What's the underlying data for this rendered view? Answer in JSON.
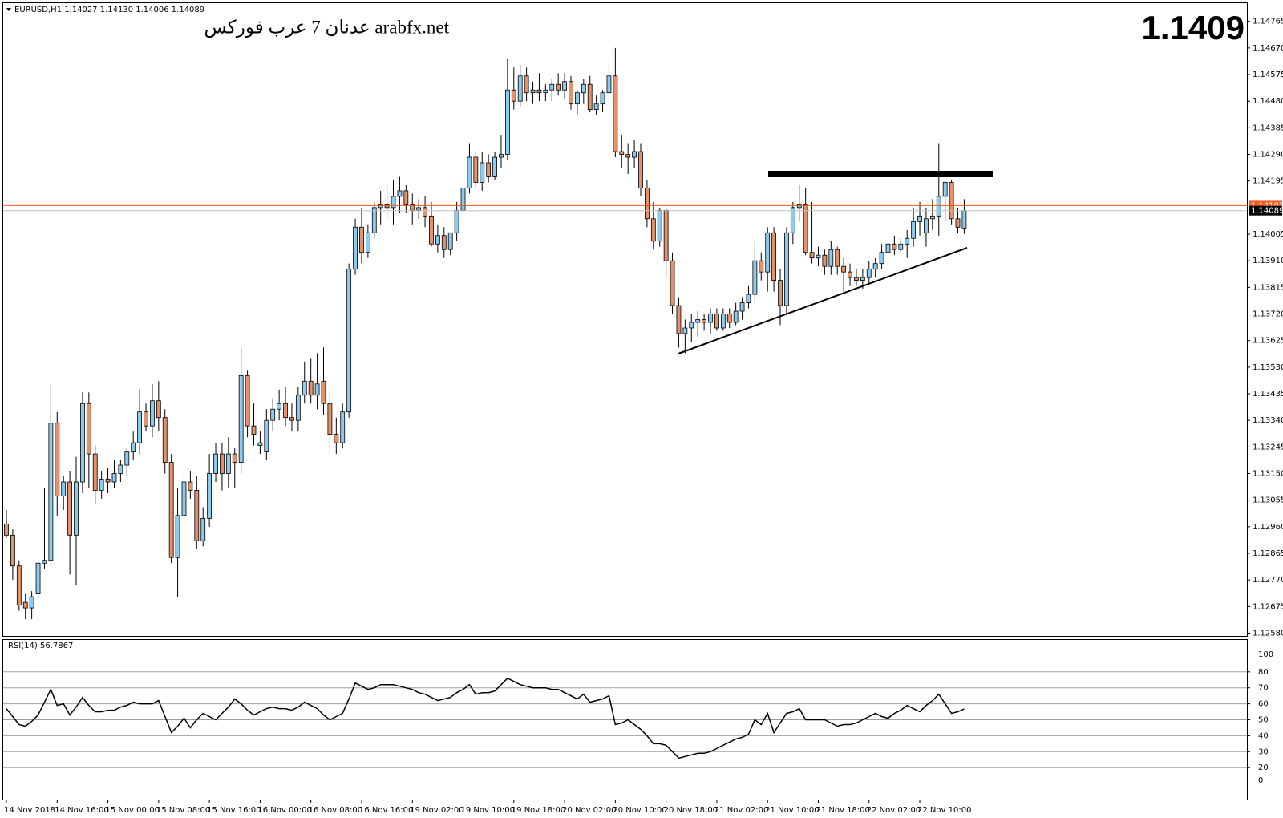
{
  "chart_data": [
    {
      "type": "candlestick",
      "header": "EURUSD,H1  1.14027 1.14130 1.14006 1.14089",
      "watermark": "عدنان 7 عرب فوركس arabfx.net",
      "price_display": "1.1409",
      "up_color": "#8ccbf0",
      "down_color": "#e3926c",
      "wick_color": "#000000",
      "ask": 1.14107,
      "ask_color": "#ff5a1f",
      "bid": 1.14089,
      "bid_color": "#000000",
      "ylim": [
        1.1257,
        1.1483
      ],
      "yticks": [
        1.14765,
        {
          "value": 1.1467,
          "label": "1.14670"
        },
        1.14575,
        {
          "value": 1.1448,
          "label": "1.14480"
        },
        1.14385,
        {
          "value": 1.1429,
          "label": "1.14290"
        },
        1.14195,
        1.14005,
        {
          "value": 1.1391,
          "label": "1.13910"
        },
        1.13815,
        {
          "value": 1.1372,
          "label": "1.13720"
        },
        1.13625,
        {
          "value": 1.1353,
          "label": "1.13530"
        },
        1.13435,
        {
          "value": 1.1334,
          "label": "1.13340"
        },
        1.13245,
        {
          "value": 1.1315,
          "label": "1.13150"
        },
        1.13055,
        {
          "value": 1.1296,
          "label": "1.12960"
        },
        1.12865,
        {
          "value": 1.1277,
          "label": "1.12770"
        },
        1.12675,
        {
          "value": 1.1258,
          "label": "1.12580"
        }
      ],
      "categories": [
        "14 Nov 2018",
        null,
        null,
        null,
        null,
        null,
        null,
        null,
        "14 Nov 16:00",
        null,
        null,
        null,
        null,
        null,
        null,
        null,
        "15 Nov 00:00",
        null,
        null,
        null,
        null,
        null,
        null,
        null,
        "15 Nov 08:00",
        null,
        null,
        null,
        null,
        null,
        null,
        null,
        "15 Nov 16:00",
        null,
        null,
        null,
        null,
        null,
        null,
        null,
        "16 Nov 00:00",
        null,
        null,
        null,
        null,
        null,
        null,
        null,
        "16 Nov 08:00",
        null,
        null,
        null,
        null,
        null,
        null,
        null,
        "16 Nov 16:00",
        null,
        null,
        null,
        null,
        null,
        null,
        null,
        "19 Nov 02:00",
        null,
        null,
        null,
        null,
        null,
        null,
        null,
        "19 Nov 10:00",
        null,
        null,
        null,
        null,
        null,
        null,
        null,
        "19 Nov 18:00",
        null,
        null,
        null,
        null,
        null,
        null,
        null,
        "20 Nov 02:00",
        null,
        null,
        null,
        null,
        null,
        null,
        null,
        "20 Nov 10:00",
        null,
        null,
        null,
        null,
        null,
        null,
        null,
        "20 Nov 18:00",
        null,
        null,
        null,
        null,
        null,
        null,
        null,
        "21 Nov 02:00",
        null,
        null,
        null,
        null,
        null,
        null,
        null,
        "21 Nov 10:00",
        null,
        null,
        null,
        null,
        null,
        null,
        null,
        "21 Nov 18:00",
        null,
        null,
        null,
        null,
        null,
        null,
        null,
        "22 Nov 02:00",
        null,
        null,
        null,
        null,
        null,
        null,
        null,
        "22 Nov 10:00",
        null,
        null,
        null,
        null,
        null,
        null,
        null
      ],
      "ohlc": [
        [
          1.1297,
          1.1302,
          1.1292,
          1.1293
        ],
        [
          1.1293,
          1.1295,
          1.1277,
          1.1282
        ],
        [
          1.1282,
          1.1284,
          1.1266,
          1.1268
        ],
        [
          1.1269,
          1.1272,
          1.1263,
          1.1267
        ],
        [
          1.1267,
          1.1273,
          1.1263,
          1.1271
        ],
        [
          1.1272,
          1.1284,
          1.127,
          1.1283
        ],
        [
          1.1283,
          1.131,
          1.1281,
          1.1284
        ],
        [
          1.1284,
          1.1347,
          1.1282,
          1.1333
        ],
        [
          1.1333,
          1.1337,
          1.13,
          1.1307
        ],
        [
          1.1307,
          1.1314,
          1.1302,
          1.1312
        ],
        [
          1.1312,
          1.1316,
          1.1279,
          1.1293
        ],
        [
          1.1293,
          1.1321,
          1.1275,
          1.1312
        ],
        [
          1.1312,
          1.1344,
          1.1308,
          1.134
        ],
        [
          1.134,
          1.1344,
          1.131,
          1.1322
        ],
        [
          1.1322,
          1.1325,
          1.1304,
          1.1309
        ],
        [
          1.1309,
          1.1316,
          1.1306,
          1.1313
        ],
        [
          1.1313,
          1.1317,
          1.1308,
          1.1312
        ],
        [
          1.1312,
          1.132,
          1.131,
          1.1315
        ],
        [
          1.1315,
          1.132,
          1.1312,
          1.1318
        ],
        [
          1.1318,
          1.1324,
          1.1314,
          1.1323
        ],
        [
          1.1323,
          1.133,
          1.132,
          1.1326
        ],
        [
          1.1326,
          1.1345,
          1.1322,
          1.1337
        ],
        [
          1.1337,
          1.134,
          1.133,
          1.1332
        ],
        [
          1.1332,
          1.1347,
          1.1328,
          1.1341
        ],
        [
          1.1341,
          1.1348,
          1.133,
          1.1335
        ],
        [
          1.1335,
          1.1338,
          1.1315,
          1.1319
        ],
        [
          1.1319,
          1.1322,
          1.1283,
          1.1285
        ],
        [
          1.1285,
          1.131,
          1.1271,
          1.13
        ],
        [
          1.13,
          1.1318,
          1.1297,
          1.1312
        ],
        [
          1.1312,
          1.1316,
          1.1306,
          1.1309
        ],
        [
          1.1309,
          1.1314,
          1.1288,
          1.1291
        ],
        [
          1.1291,
          1.1303,
          1.1289,
          1.1299
        ],
        [
          1.1299,
          1.1322,
          1.1296,
          1.1315
        ],
        [
          1.1315,
          1.1326,
          1.1312,
          1.1322
        ],
        [
          1.1322,
          1.1326,
          1.1309,
          1.1315
        ],
        [
          1.1315,
          1.1328,
          1.131,
          1.1322
        ],
        [
          1.1322,
          1.1324,
          1.131,
          1.1319
        ],
        [
          1.1319,
          1.136,
          1.1315,
          1.135
        ],
        [
          1.135,
          1.1352,
          1.1328,
          1.1332
        ],
        [
          1.1332,
          1.134,
          1.1325,
          1.1329
        ],
        [
          1.1325,
          1.133,
          1.1322,
          1.1326
        ],
        [
          1.1323,
          1.1338,
          1.132,
          1.1334
        ],
        [
          1.1334,
          1.1342,
          1.133,
          1.1338
        ],
        [
          1.1338,
          1.1345,
          1.1334,
          1.134
        ],
        [
          1.134,
          1.1346,
          1.1332,
          1.1335
        ],
        [
          1.1335,
          1.134,
          1.133,
          1.1334
        ],
        [
          1.1334,
          1.1346,
          1.133,
          1.1343
        ],
        [
          1.1343,
          1.1355,
          1.134,
          1.1348
        ],
        [
          1.1348,
          1.1356,
          1.134,
          1.1343
        ],
        [
          1.1343,
          1.1358,
          1.1338,
          1.1347
        ],
        [
          1.1348,
          1.136,
          1.1336,
          1.134
        ],
        [
          1.134,
          1.1344,
          1.1322,
          1.1329
        ],
        [
          1.1329,
          1.1335,
          1.1322,
          1.1326
        ],
        [
          1.1326,
          1.134,
          1.1324,
          1.1337
        ],
        [
          1.1337,
          1.139,
          1.1335,
          1.1388
        ],
        [
          1.1388,
          1.1406,
          1.1386,
          1.1403
        ],
        [
          1.1403,
          1.141,
          1.139,
          1.1394
        ],
        [
          1.1394,
          1.1404,
          1.1392,
          1.1401
        ],
        [
          1.1401,
          1.1412,
          1.1399,
          1.141
        ],
        [
          1.141,
          1.1416,
          1.1404,
          1.1411
        ],
        [
          1.1411,
          1.1418,
          1.1406,
          1.141
        ],
        [
          1.141,
          1.142,
          1.1404,
          1.1414
        ],
        [
          1.1414,
          1.1421,
          1.1408,
          1.1416
        ],
        [
          1.1416,
          1.1418,
          1.1408,
          1.1411
        ],
        [
          1.1411,
          1.1415,
          1.1404,
          1.1409
        ],
        [
          1.1409,
          1.1413,
          1.1406,
          1.141
        ],
        [
          1.141,
          1.1414,
          1.1403,
          1.1407
        ],
        [
          1.1407,
          1.1412,
          1.1396,
          1.1397
        ],
        [
          1.1397,
          1.1404,
          1.1394,
          1.14
        ],
        [
          1.14,
          1.1403,
          1.1392,
          1.1395
        ],
        [
          1.1395,
          1.1401,
          1.1393,
          1.1401
        ],
        [
          1.1401,
          1.1412,
          1.1398,
          1.1409
        ],
        [
          1.1409,
          1.142,
          1.1406,
          1.1417
        ],
        [
          1.1417,
          1.1433,
          1.1415,
          1.1428
        ],
        [
          1.1428,
          1.143,
          1.1417,
          1.1419
        ],
        [
          1.1419,
          1.143,
          1.1416,
          1.1426
        ],
        [
          1.1426,
          1.1429,
          1.1419,
          1.1421
        ],
        [
          1.1421,
          1.143,
          1.142,
          1.1428
        ],
        [
          1.1428,
          1.1436,
          1.1424,
          1.1429
        ],
        [
          1.1429,
          1.1463,
          1.1427,
          1.1452
        ],
        [
          1.1452,
          1.146,
          1.1445,
          1.1448
        ],
        [
          1.1448,
          1.1461,
          1.1446,
          1.1457
        ],
        [
          1.1457,
          1.146,
          1.1448,
          1.1451
        ],
        [
          1.1451,
          1.1455,
          1.1447,
          1.1452
        ],
        [
          1.1452,
          1.1458,
          1.1448,
          1.1451
        ],
        [
          1.1451,
          1.1454,
          1.1448,
          1.1452
        ],
        [
          1.1452,
          1.1456,
          1.1448,
          1.1454
        ],
        [
          1.1454,
          1.1458,
          1.145,
          1.1452
        ],
        [
          1.1452,
          1.1458,
          1.1449,
          1.1455
        ],
        [
          1.1455,
          1.1457,
          1.1445,
          1.1447
        ],
        [
          1.1447,
          1.1452,
          1.1443,
          1.1451
        ],
        [
          1.1451,
          1.1456,
          1.1447,
          1.1454
        ],
        [
          1.1454,
          1.1457,
          1.1444,
          1.1445
        ],
        [
          1.1445,
          1.145,
          1.1443,
          1.1447
        ],
        [
          1.1447,
          1.1452,
          1.1444,
          1.1451
        ],
        [
          1.1451,
          1.1462,
          1.1448,
          1.1457
        ],
        [
          1.1457,
          1.1467,
          1.1428,
          1.143
        ],
        [
          1.143,
          1.1436,
          1.1424,
          1.1429
        ],
        [
          1.1429,
          1.1433,
          1.1422,
          1.1428
        ],
        [
          1.1428,
          1.1434,
          1.1424,
          1.143
        ],
        [
          1.143,
          1.1433,
          1.1414,
          1.1417
        ],
        [
          1.1417,
          1.142,
          1.1403,
          1.1406
        ],
        [
          1.1406,
          1.1412,
          1.1395,
          1.1398
        ],
        [
          1.1398,
          1.141,
          1.1396,
          1.1409
        ],
        [
          1.1409,
          1.141,
          1.1385,
          1.1391
        ],
        [
          1.1391,
          1.1394,
          1.1372,
          1.1375
        ],
        [
          1.1375,
          1.1378,
          1.136,
          1.1365
        ],
        [
          1.1365,
          1.137,
          1.1358,
          1.1367
        ],
        [
          1.1367,
          1.1372,
          1.1362,
          1.1369
        ],
        [
          1.1369,
          1.1373,
          1.1364,
          1.137
        ],
        [
          1.137,
          1.1372,
          1.1366,
          1.1369
        ],
        [
          1.1369,
          1.1374,
          1.1365,
          1.1372
        ],
        [
          1.1372,
          1.1374,
          1.1366,
          1.1367
        ],
        [
          1.1367,
          1.1374,
          1.1366,
          1.1372
        ],
        [
          1.1372,
          1.1374,
          1.1367,
          1.1369
        ],
        [
          1.1369,
          1.1376,
          1.1368,
          1.1373
        ],
        [
          1.1373,
          1.1378,
          1.137,
          1.1376
        ],
        [
          1.1376,
          1.1382,
          1.1374,
          1.1379
        ],
        [
          1.1379,
          1.1398,
          1.1376,
          1.1391
        ],
        [
          1.1391,
          1.1394,
          1.1384,
          1.1387
        ],
        [
          1.1387,
          1.1403,
          1.138,
          1.1401
        ],
        [
          1.1401,
          1.1403,
          1.138,
          1.1384
        ],
        [
          1.1384,
          1.1388,
          1.1368,
          1.1375
        ],
        [
          1.1375,
          1.1403,
          1.1372,
          1.1401
        ],
        [
          1.1401,
          1.1412,
          1.1397,
          1.141
        ],
        [
          1.141,
          1.1418,
          1.1405,
          1.1411
        ],
        [
          1.1411,
          1.1417,
          1.1393,
          1.1394
        ],
        [
          1.1394,
          1.1412,
          1.139,
          1.1392
        ],
        [
          1.1392,
          1.1396,
          1.1389,
          1.1393
        ],
        [
          1.1393,
          1.1395,
          1.1386,
          1.1389
        ],
        [
          1.1389,
          1.1398,
          1.1386,
          1.1395
        ],
        [
          1.1395,
          1.1396,
          1.1386,
          1.1389
        ],
        [
          1.1389,
          1.1392,
          1.138,
          1.1387
        ],
        [
          1.1387,
          1.139,
          1.1382,
          1.1385
        ],
        [
          1.1385,
          1.1388,
          1.1382,
          1.1384
        ],
        [
          1.1384,
          1.1388,
          1.1381,
          1.1385
        ],
        [
          1.1385,
          1.1391,
          1.1383,
          1.1388
        ],
        [
          1.1388,
          1.1392,
          1.1385,
          1.139
        ],
        [
          1.139,
          1.1397,
          1.1388,
          1.1394
        ],
        [
          1.1394,
          1.1402,
          1.1391,
          1.1397
        ],
        [
          1.1397,
          1.14,
          1.1393,
          1.1395
        ],
        [
          1.1395,
          1.1399,
          1.1394,
          1.1397
        ],
        [
          1.1397,
          1.1402,
          1.1392,
          1.1399
        ],
        [
          1.1399,
          1.141,
          1.1396,
          1.1405
        ],
        [
          1.1405,
          1.1412,
          1.14,
          1.1407
        ],
        [
          1.1401,
          1.141,
          1.1396,
          1.1406
        ],
        [
          1.1406,
          1.1413,
          1.1402,
          1.1407
        ],
        [
          1.1407,
          1.1433,
          1.14,
          1.1414
        ],
        [
          1.1414,
          1.142,
          1.1405,
          1.1419
        ],
        [
          1.1419,
          1.142,
          1.1404,
          1.1406
        ],
        [
          1.1406,
          1.141,
          1.1401,
          1.1403
        ],
        [
          1.14027,
          1.1413,
          1.14006,
          1.14089
        ]
      ]
    },
    {
      "type": "line",
      "title": "RSI(14) 56.7867",
      "color": "#000000",
      "grid_color": "#a0a0a0",
      "ylim": [
        0,
        100
      ],
      "yticks": [
        0,
        20,
        30,
        40,
        50,
        60,
        70,
        80,
        100
      ],
      "values": [
        57,
        52,
        47,
        46,
        49,
        53,
        61,
        69,
        59,
        60,
        53,
        58,
        64,
        59,
        55,
        55,
        56,
        56,
        58,
        59,
        61,
        60,
        60,
        60,
        62,
        52,
        42,
        46,
        51,
        45,
        50,
        54,
        52,
        50,
        54,
        58,
        63,
        60,
        56,
        53,
        55,
        57,
        58,
        57,
        57,
        56,
        58,
        61,
        59,
        57,
        53,
        50,
        52,
        54,
        63,
        73,
        71,
        69,
        70,
        72,
        72,
        72,
        71,
        70,
        69,
        67,
        66,
        64,
        62,
        63,
        64,
        67,
        69,
        72,
        66,
        67,
        67,
        68,
        72,
        76,
        74,
        72,
        71,
        70,
        70,
        70,
        69,
        69,
        67,
        65,
        63,
        66,
        61,
        62,
        63,
        65,
        47,
        48,
        50,
        47,
        44,
        40,
        35,
        35,
        34,
        30,
        26,
        27,
        28,
        29,
        29,
        30,
        32,
        34,
        36,
        38,
        39,
        41,
        50,
        47,
        54,
        42,
        48,
        54,
        55,
        57,
        50,
        50,
        50,
        50,
        48,
        46,
        47,
        47,
        48,
        50,
        52,
        54,
        52,
        51,
        54,
        56,
        59,
        57,
        55,
        59,
        62,
        66,
        60,
        54,
        55,
        56.7867
      ]
    }
  ]
}
